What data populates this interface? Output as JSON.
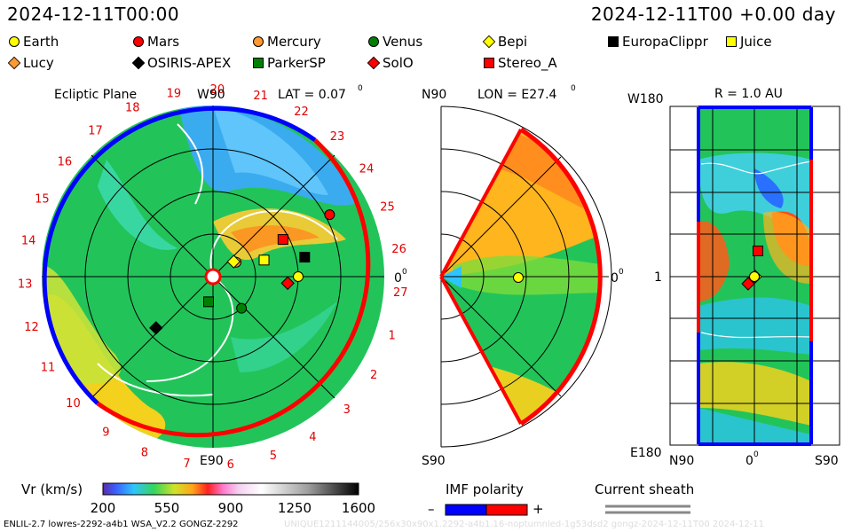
{
  "header": {
    "left": "2024-12-11T00:00",
    "right": "2024-12-11T00 +0.00 day"
  },
  "legend": [
    {
      "label": "Earth",
      "shape": "circle",
      "color": "#ffff00"
    },
    {
      "label": "Mars",
      "shape": "circle",
      "color": "#ff0000"
    },
    {
      "label": "Mercury",
      "shape": "circle",
      "color": "#ff9933"
    },
    {
      "label": "Venus",
      "shape": "circle",
      "color": "#008000"
    },
    {
      "label": "Bepi",
      "shape": "diamond",
      "color": "#ffff00"
    },
    {
      "label": "EuropaClippr",
      "shape": "square",
      "color": "#000000"
    },
    {
      "label": "Juice",
      "shape": "square",
      "color": "#ffff00"
    },
    {
      "label": "Lucy",
      "shape": "diamond",
      "color": "#ff9933"
    },
    {
      "label": "OSIRIS-APEX",
      "shape": "diamond",
      "color": "#000000"
    },
    {
      "label": "ParkerSP",
      "shape": "square",
      "color": "#008000"
    },
    {
      "label": "SolO",
      "shape": "diamond",
      "color": "#ff0000"
    },
    {
      "label": "Stereo_A",
      "shape": "square",
      "color": "#ff0000"
    }
  ],
  "panels": {
    "ecliptic": {
      "title": "Ecliptic Plane",
      "top": "W90",
      "bottom": "E90",
      "right": "0",
      "lat": "LAT = 0.07",
      "deg": "0"
    },
    "meridional": {
      "top": "N90",
      "bottom": "S90",
      "right": "0",
      "lon": "LON = E27.4",
      "deg": "0"
    },
    "map": {
      "title": "R = 1.0 AU",
      "topleft": "W180",
      "bottomleft": "E180",
      "mid": "1",
      "xleft": "N90",
      "xmid": "0",
      "xright": "S90"
    }
  },
  "carrington_labels": [
    "19",
    "20",
    "21",
    "22",
    "23",
    "24",
    "25",
    "26",
    "27",
    "1",
    "2",
    "3",
    "4",
    "5",
    "6",
    "7",
    "8",
    "9",
    "10",
    "11",
    "12",
    "13",
    "14",
    "15",
    "16",
    "17",
    "18"
  ],
  "colorbar": {
    "label": "Vr (km/s)",
    "ticks": [
      "200",
      "550",
      "900",
      "1250",
      "1600"
    ]
  },
  "imf": {
    "label": "IMF polarity",
    "minus": "–",
    "plus": "+"
  },
  "sheath": {
    "label": "Current sheath"
  },
  "footer": "ENLIL-2.7 lowres-2292-a4b1 WSA_V2.2 GONGZ-2292",
  "footer2": "UNIQUE1211144005/256x30x90x1.2292-a4b1.16-noptumnled-1g53dsd2 gongz-2024-12-11T00   2024-12-11",
  "colors": {
    "wind_slow": "#22c45a",
    "wind_fast": "#ffcc00",
    "imf_neg": "#0000ff",
    "imf_pos": "#ff0000",
    "sheath": "#ffffff"
  },
  "chart_data": {
    "type": "heatmap",
    "quantity": "Vr (km/s)",
    "colorbar_range": [
      200,
      1600
    ],
    "bodies_ecliptic": [
      {
        "name": "Earth",
        "lon_deg": 0,
        "r_au": 1.0
      },
      {
        "name": "Mars",
        "lon_deg": 28,
        "r_au": 1.55
      },
      {
        "name": "Mercury",
        "lon_deg": 32,
        "r_au": 0.32
      },
      {
        "name": "Bepi",
        "lon_deg": 36,
        "r_au": 0.3
      },
      {
        "name": "Juice",
        "lon_deg": 18,
        "r_au": 0.63
      },
      {
        "name": "EuropaClippr",
        "lon_deg": 12,
        "r_au": 1.1
      },
      {
        "name": "Stereo_A",
        "lon_deg": 28,
        "r_au": 0.93
      },
      {
        "name": "SolO",
        "lon_deg": -5,
        "r_au": 0.88
      },
      {
        "name": "ParkerSP",
        "lon_deg": -100,
        "r_au": 0.3
      },
      {
        "name": "Venus",
        "lon_deg": -48,
        "r_au": 0.5
      },
      {
        "name": "OSIRIS-APEX",
        "lon_deg": -138,
        "r_au": 0.9
      }
    ]
  }
}
